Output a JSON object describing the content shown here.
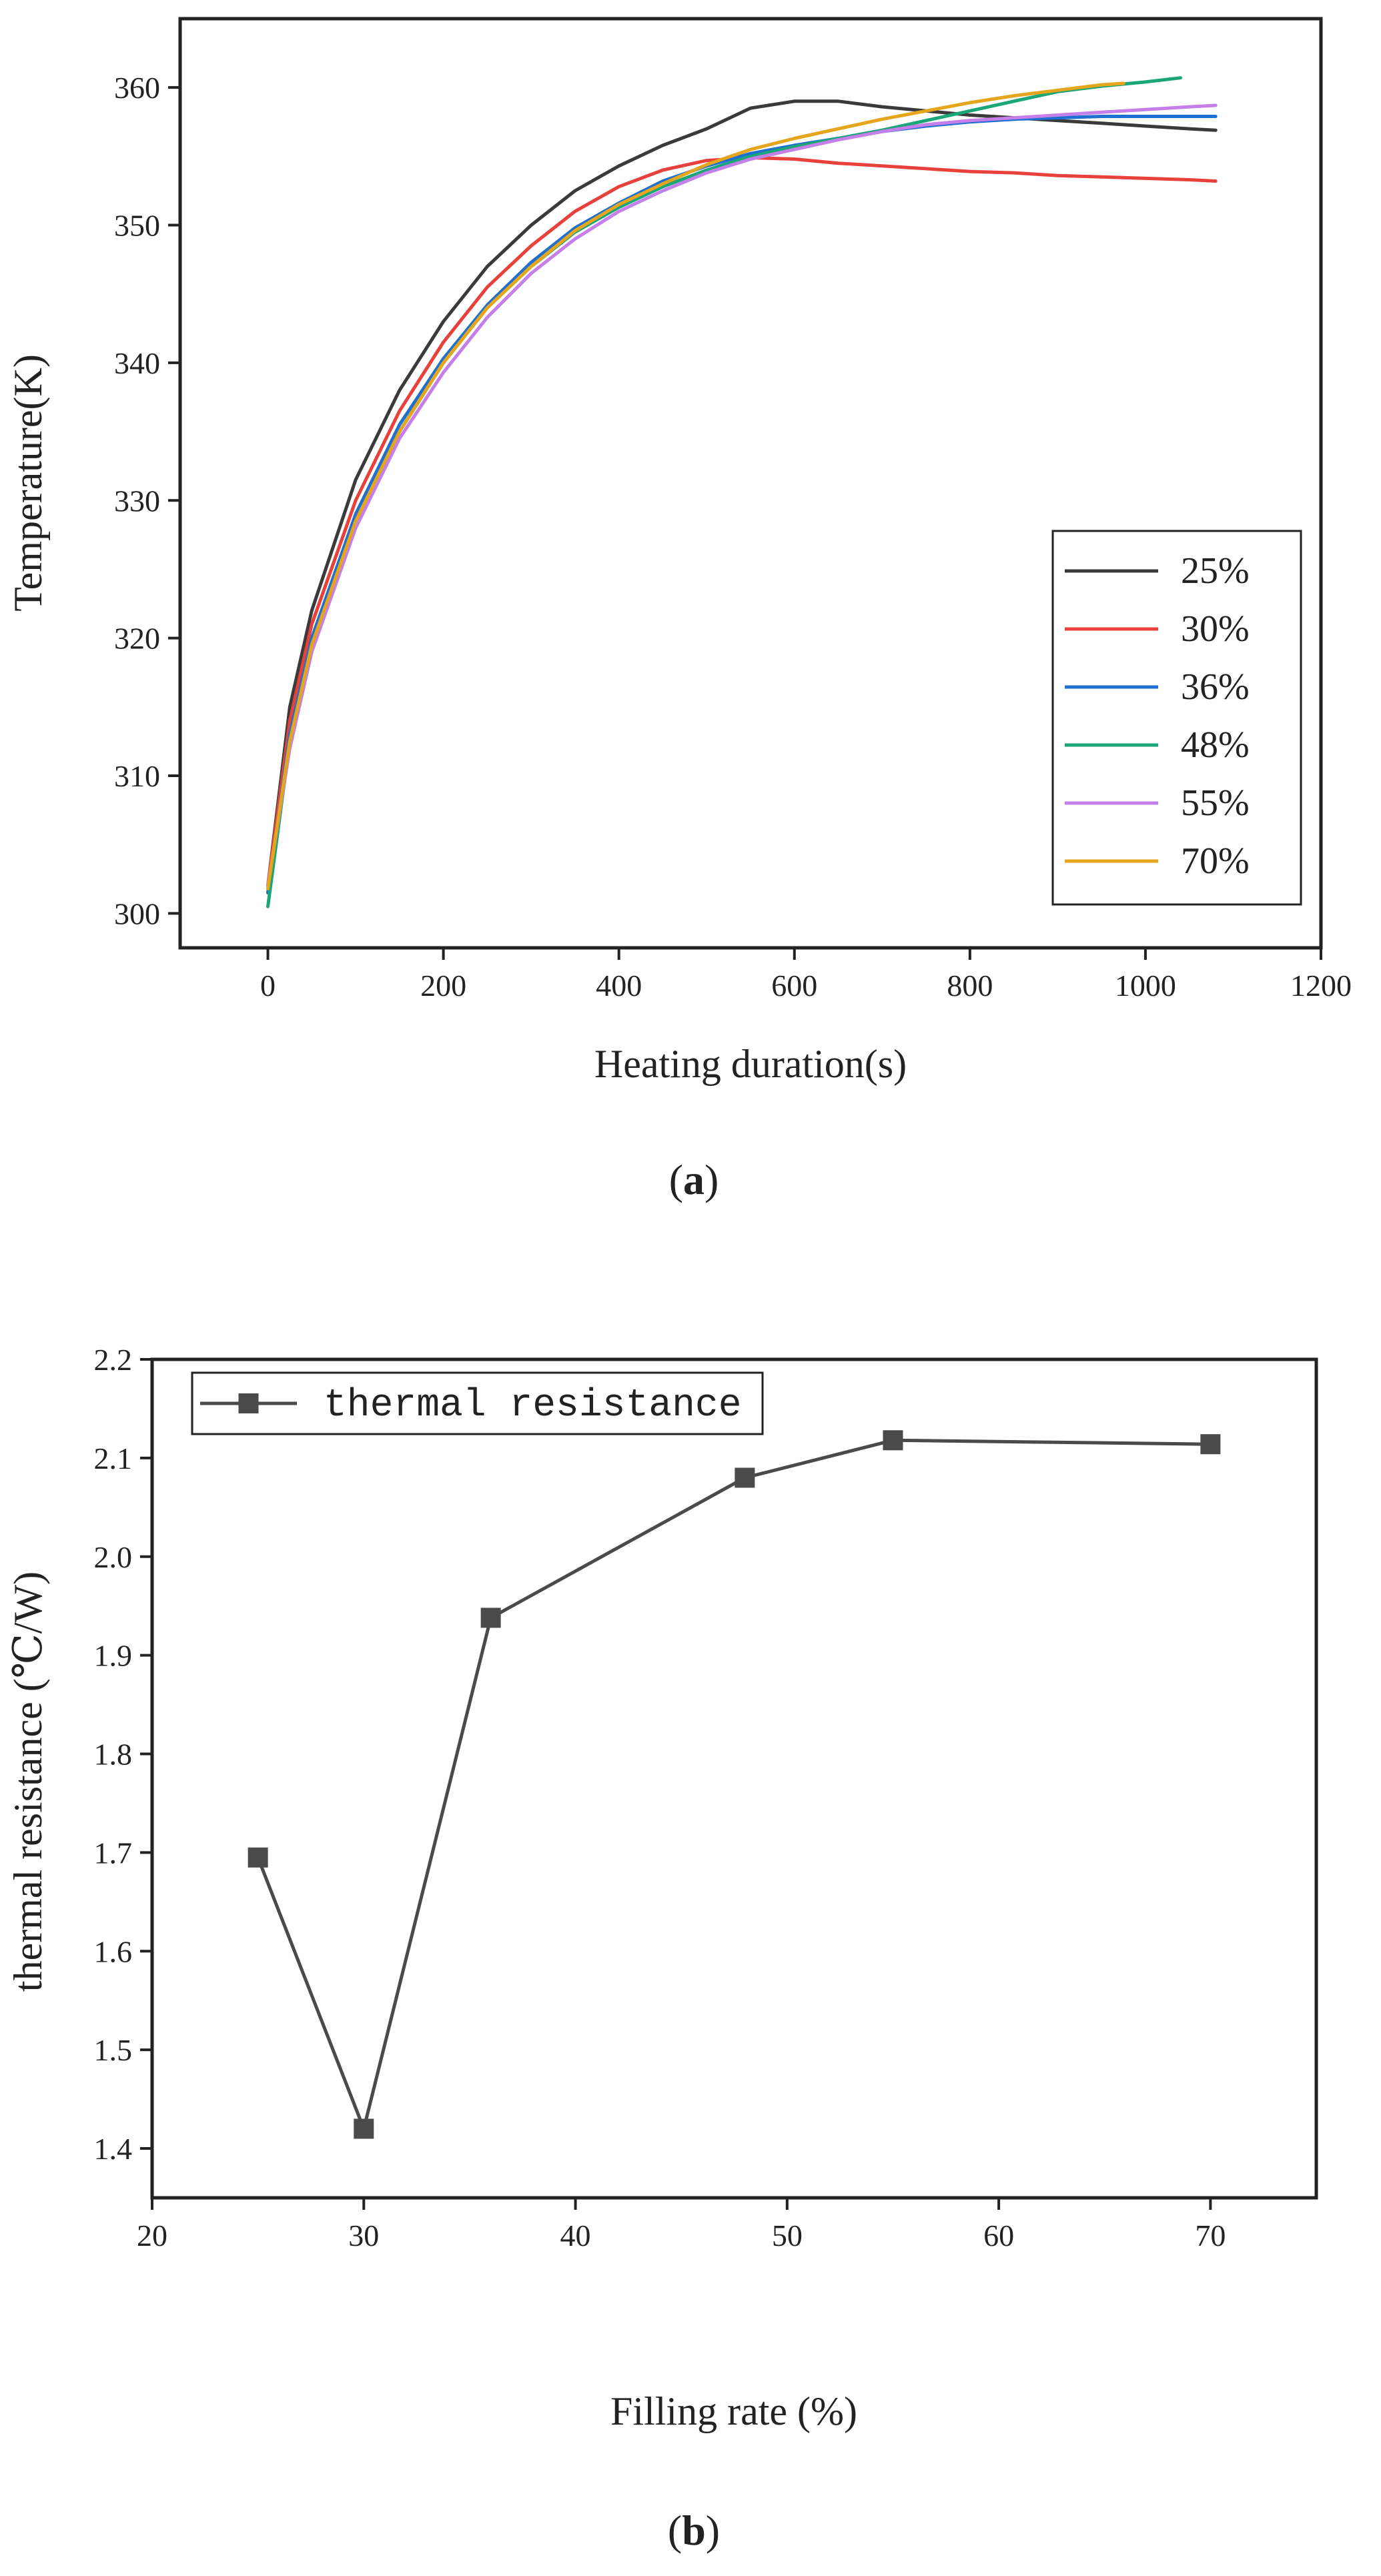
{
  "chart_data": [
    {
      "id": "a",
      "panel_label_open": "(",
      "panel_label_letter": "a",
      "panel_label_close": ")",
      "type": "line",
      "title": "",
      "xlabel": "Heating duration(s)",
      "ylabel": "Temperature(K)",
      "xlim": [
        -100,
        1200
      ],
      "ylim": [
        297.5,
        365
      ],
      "xticks": [
        0,
        200,
        400,
        600,
        800,
        1000,
        1200
      ],
      "xtick_labels": [
        "0",
        "200",
        "400",
        "600",
        "800",
        "1000",
        "1200"
      ],
      "yticks": [
        300,
        310,
        320,
        330,
        340,
        350,
        360
      ],
      "ytick_labels": [
        "300",
        "310",
        "320",
        "330",
        "340",
        "350",
        "360"
      ],
      "legend_position": "bottom-right",
      "series": [
        {
          "name": "25%",
          "color": "#3a3a3a",
          "x": [
            0,
            25,
            50,
            100,
            150,
            200,
            250,
            300,
            350,
            400,
            450,
            500,
            550,
            600,
            650,
            700,
            750,
            800,
            850,
            900,
            950,
            1000,
            1050,
            1080
          ],
          "y": [
            302,
            315,
            322,
            331.5,
            338,
            343,
            347,
            350,
            352.5,
            354.3,
            355.8,
            357,
            358.5,
            359,
            359,
            358.6,
            358.3,
            358,
            357.8,
            357.6,
            357.4,
            357.2,
            357,
            356.9
          ]
        },
        {
          "name": "30%",
          "color": "#e8413c",
          "x": [
            0,
            25,
            50,
            100,
            150,
            200,
            250,
            300,
            350,
            400,
            450,
            500,
            550,
            600,
            650,
            700,
            750,
            800,
            850,
            900,
            950,
            1000,
            1050,
            1080
          ],
          "y": [
            302,
            314,
            321,
            330,
            336.5,
            341.5,
            345.5,
            348.5,
            351,
            352.8,
            354,
            354.7,
            354.9,
            354.8,
            354.5,
            354.3,
            354.1,
            353.9,
            353.8,
            353.6,
            353.5,
            353.4,
            353.3,
            353.2
          ]
        },
        {
          "name": "36%",
          "color": "#1f6fd0",
          "x": [
            0,
            25,
            50,
            100,
            150,
            200,
            250,
            300,
            350,
            400,
            450,
            500,
            550,
            600,
            650,
            700,
            750,
            800,
            850,
            900,
            950,
            1000,
            1050,
            1080
          ],
          "y": [
            301.5,
            313,
            320,
            329,
            335.5,
            340.3,
            344.2,
            347.3,
            349.8,
            351.6,
            353.2,
            354.3,
            355.2,
            355.8,
            356.3,
            356.8,
            357.2,
            357.5,
            357.7,
            357.8,
            357.9,
            357.9,
            357.9,
            357.9
          ]
        },
        {
          "name": "48%",
          "color": "#1aa677",
          "x": [
            0,
            25,
            50,
            100,
            150,
            200,
            250,
            300,
            350,
            400,
            450,
            500,
            550,
            600,
            650,
            700,
            750,
            800,
            850,
            900,
            950,
            1000,
            1040
          ],
          "y": [
            300.5,
            312.5,
            319.5,
            328.5,
            335,
            340,
            344,
            347,
            349.5,
            351.3,
            352.8,
            354,
            355,
            355.7,
            356.3,
            356.9,
            357.6,
            358.3,
            359,
            359.7,
            360.1,
            360.4,
            360.7
          ]
        },
        {
          "name": "55%",
          "color": "#c57fe8",
          "x": [
            0,
            25,
            50,
            100,
            150,
            200,
            250,
            300,
            350,
            400,
            450,
            500,
            550,
            600,
            650,
            700,
            750,
            800,
            850,
            900,
            950,
            1000,
            1050,
            1080
          ],
          "y": [
            302,
            312,
            319,
            328,
            334.5,
            339.3,
            343.3,
            346.5,
            349,
            351,
            352.5,
            353.8,
            354.8,
            355.5,
            356.2,
            356.8,
            357.3,
            357.6,
            357.8,
            358,
            358.2,
            358.4,
            358.6,
            358.7
          ]
        },
        {
          "name": "70%",
          "color": "#e5a51c",
          "x": [
            0,
            25,
            50,
            100,
            150,
            200,
            250,
            300,
            350,
            400,
            450,
            500,
            550,
            600,
            650,
            700,
            750,
            800,
            850,
            900,
            950,
            975
          ],
          "y": [
            301.8,
            312.5,
            319.5,
            328.5,
            335,
            340,
            344,
            347,
            349.6,
            351.5,
            353,
            354.4,
            355.5,
            356.3,
            357,
            357.7,
            358.3,
            358.9,
            359.4,
            359.8,
            360.2,
            360.3
          ]
        }
      ]
    },
    {
      "id": "b",
      "panel_label_open": "(",
      "panel_label_letter": "b",
      "panel_label_close": ")",
      "type": "line",
      "title": "",
      "xlabel": "Filling rate (%)",
      "ylabel": "thermal resistance (℃/W)",
      "xlim": [
        20,
        75
      ],
      "ylim": [
        1.35,
        2.2
      ],
      "xticks": [
        20,
        30,
        40,
        50,
        60,
        70
      ],
      "xtick_labels": [
        "20",
        "30",
        "40",
        "50",
        "60",
        "70"
      ],
      "yticks": [
        1.4,
        1.5,
        1.6,
        1.7,
        1.8,
        1.9,
        2.0,
        2.1,
        2.2
      ],
      "ytick_labels": [
        "1.4",
        "1.5",
        "1.6",
        "1.7",
        "1.8",
        "1.9",
        "2.0",
        "2.1",
        "2.2"
      ],
      "legend_position": "top-left",
      "series": [
        {
          "name": "thermal resistance",
          "color": "#4a4a4a",
          "marker": "square",
          "x": [
            25,
            30,
            36,
            48,
            55,
            70
          ],
          "y": [
            1.695,
            1.42,
            1.938,
            2.08,
            2.118,
            2.114
          ]
        }
      ]
    }
  ]
}
